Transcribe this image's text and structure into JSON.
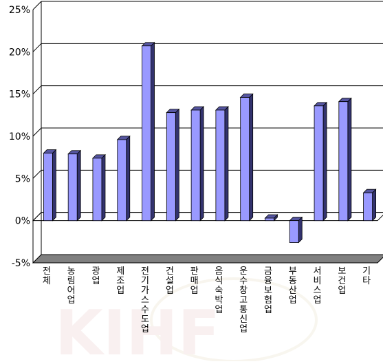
{
  "chart_data": {
    "type": "bar",
    "title": "",
    "xlabel": "",
    "ylabel": "",
    "ylim": [
      -5,
      25
    ],
    "y_ticks": [
      "25%",
      "20%",
      "15%",
      "10%",
      "5%",
      "0%",
      "-5%"
    ],
    "y_tick_values": [
      25,
      20,
      15,
      10,
      5,
      0,
      -5
    ],
    "grid": true,
    "categories": [
      "전체",
      "농림어업",
      "광업",
      "제조업",
      "전기가스수도업",
      "건설업",
      "판매업",
      "음식숙박업",
      "운수창고통신업",
      "금융보험업",
      "부동산업",
      "서비스업",
      "보건업",
      "기타"
    ],
    "values": [
      8.0,
      7.9,
      7.4,
      9.6,
      20.7,
      12.8,
      13.1,
      13.1,
      14.6,
      0.3,
      -2.6,
      13.6,
      14.1,
      3.3
    ],
    "colors": {
      "bar_face": "#9999ff",
      "bar_side": "#33336e",
      "bar_top": "#5555a0",
      "floor": "#808080",
      "grid": "#000000"
    }
  },
  "watermark_text": "KIHF"
}
